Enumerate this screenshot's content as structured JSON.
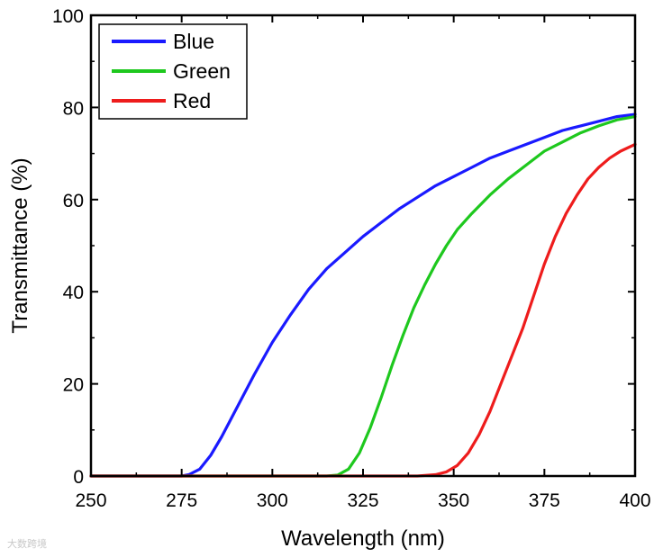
{
  "chart_data": {
    "type": "line",
    "title": "",
    "xlabel": "Wavelength (nm)",
    "ylabel": "Transmittance (%)",
    "xlim": [
      250,
      400
    ],
    "ylim": [
      0,
      100
    ],
    "xticks": [
      250,
      275,
      300,
      325,
      350,
      375,
      400
    ],
    "yticks": [
      0,
      20,
      40,
      60,
      80,
      100
    ],
    "legend_position": "top-left",
    "series": [
      {
        "name": "Blue",
        "color": "#1a1aff",
        "x": [
          250,
          275,
          277,
          280,
          283,
          286,
          290,
          295,
          300,
          305,
          310,
          315,
          320,
          325,
          330,
          335,
          340,
          345,
          350,
          355,
          360,
          365,
          370,
          375,
          380,
          385,
          390,
          395,
          400
        ],
        "y": [
          0,
          0,
          0.3,
          1.5,
          4.5,
          8.5,
          14.5,
          22,
          29,
          35,
          40.5,
          45,
          48.5,
          52,
          55,
          58,
          60.5,
          63,
          65,
          67,
          69,
          70.5,
          72,
          73.5,
          75,
          76,
          77,
          78,
          78.5
        ]
      },
      {
        "name": "Green",
        "color": "#1ec81e",
        "x": [
          250,
          315,
          318,
          321,
          324,
          327,
          330,
          333,
          336,
          339,
          342,
          345,
          348,
          351,
          355,
          360,
          365,
          370,
          375,
          380,
          385,
          390,
          395,
          400
        ],
        "y": [
          0,
          0,
          0.2,
          1.5,
          5,
          10.5,
          17,
          24,
          30.5,
          36.5,
          41.5,
          46,
          50,
          53.5,
          57,
          61,
          64.5,
          67.5,
          70.5,
          72.5,
          74.5,
          76,
          77.3,
          78
        ]
      },
      {
        "name": "Red",
        "color": "#ee1c1c",
        "x": [
          250,
          340,
          345,
          348,
          351,
          354,
          357,
          360,
          363,
          366,
          369,
          372,
          375,
          378,
          381,
          384,
          387,
          390,
          393,
          396,
          400
        ],
        "y": [
          0,
          0,
          0.3,
          0.9,
          2.3,
          5,
          9,
          14,
          20,
          26,
          32,
          39,
          46,
          52,
          57,
          61,
          64.5,
          67,
          69,
          70.5,
          72
        ]
      }
    ]
  },
  "watermark": "大数跨境"
}
